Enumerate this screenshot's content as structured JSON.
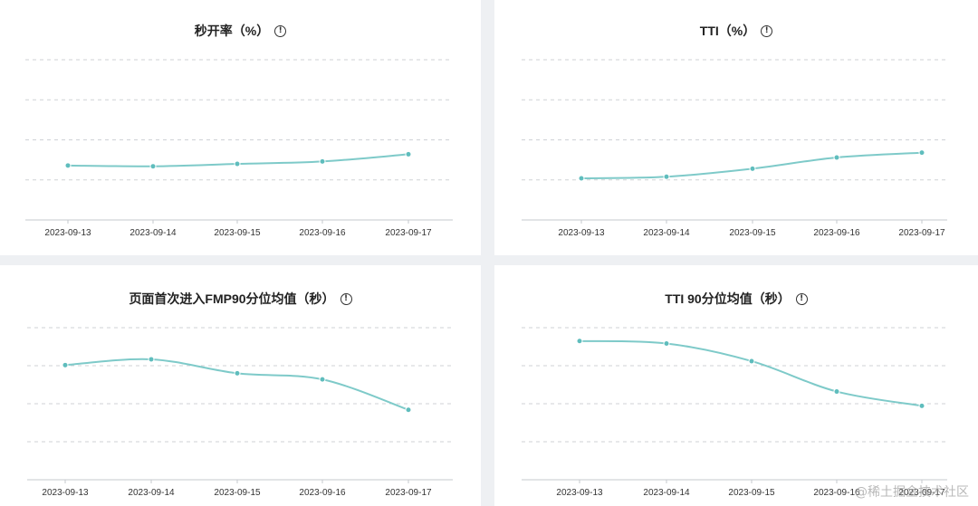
{
  "style": {
    "line": "#7ecac9",
    "point": "#5fbdbd",
    "grid": "#cfd2d6",
    "axis": "#c6c9ce"
  },
  "watermark": "@稀土掘金技术社区",
  "info_icon": "info-circle-icon",
  "chart_data": [
    {
      "type": "line",
      "title": "秒开率（%）",
      "x": [
        "2023-09-13",
        "2023-09-14",
        "2023-09-15",
        "2023-09-16",
        "2023-09-17"
      ],
      "series": [
        {
          "values": [
            0.68,
            0.67,
            0.7,
            0.73,
            0.82
          ]
        }
      ],
      "ylim": [
        0,
        2
      ],
      "grid": true,
      "smooth": true
    },
    {
      "type": "line",
      "title": "TTI（%）",
      "x": [
        "2023-09-13",
        "2023-09-14",
        "2023-09-15",
        "2023-09-16",
        "2023-09-17"
      ],
      "series": [
        {
          "values": [
            0.52,
            0.54,
            0.64,
            0.78,
            0.84
          ]
        }
      ],
      "ylim": [
        0,
        2
      ],
      "grid": true,
      "smooth": true
    },
    {
      "type": "line",
      "title": "页面首次进入FMP90分位均值（秒）",
      "x": [
        "2023-09-13",
        "2023-09-14",
        "2023-09-15",
        "2023-09-16",
        "2023-09-17"
      ],
      "series": [
        {
          "values": [
            3.77,
            3.96,
            3.5,
            3.3,
            2.3
          ]
        }
      ],
      "ylim": [
        0,
        5
      ],
      "grid": true,
      "smooth": true
    },
    {
      "type": "line",
      "title": "TTI 90分位均值（秒）",
      "x": [
        "2023-09-13",
        "2023-09-14",
        "2023-09-15",
        "2023-09-16",
        "2023-09-17"
      ],
      "series": [
        {
          "values": [
            4.56,
            4.48,
            3.9,
            2.9,
            2.43
          ]
        }
      ],
      "ylim": [
        0,
        5
      ],
      "grid": true,
      "smooth": true
    }
  ]
}
